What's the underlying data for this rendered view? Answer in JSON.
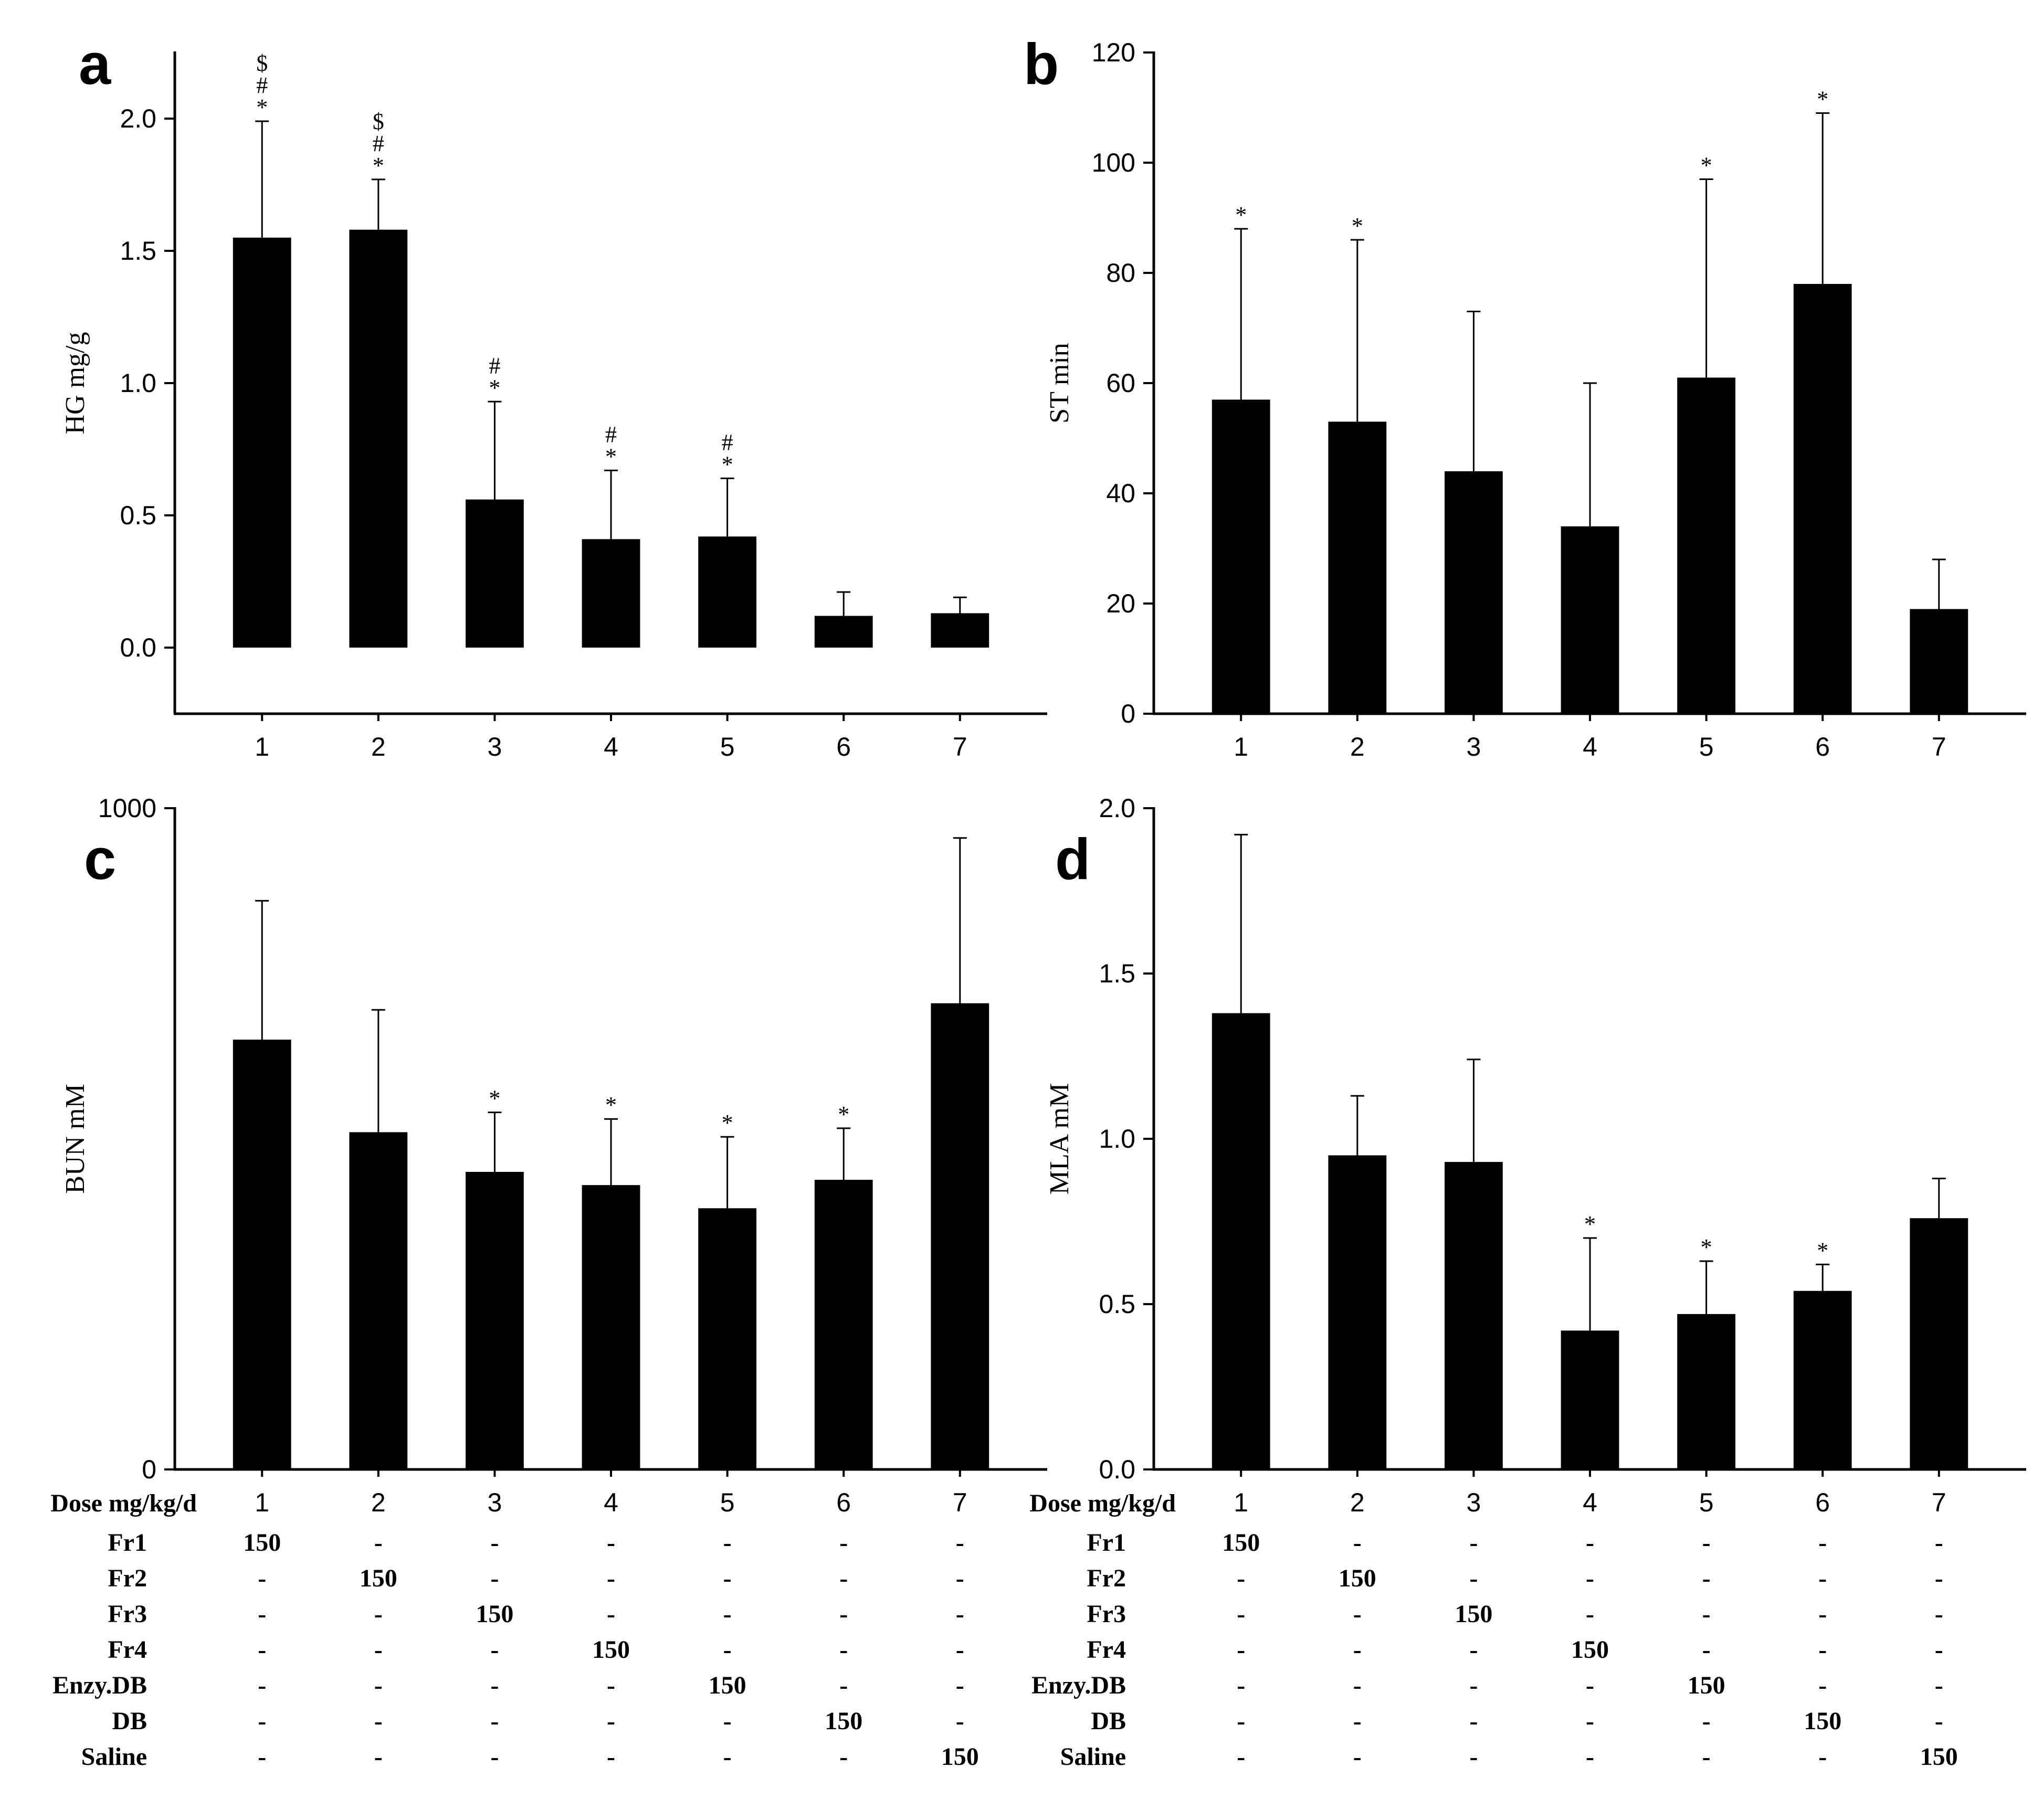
{
  "figure": {
    "categories": [
      "1",
      "2",
      "3",
      "4",
      "5",
      "6",
      "7"
    ]
  },
  "chart_data": [
    {
      "panel": "a",
      "type": "bar",
      "categories": [
        "1",
        "2",
        "3",
        "4",
        "5",
        "6",
        "7"
      ],
      "values": [
        1.55,
        1.58,
        0.56,
        0.41,
        0.42,
        0.12,
        0.13
      ],
      "errors": [
        0.44,
        0.19,
        0.37,
        0.26,
        0.22,
        0.09,
        0.06
      ],
      "significance": [
        [
          "*",
          "#",
          "$"
        ],
        [
          "*",
          "#",
          "$"
        ],
        [
          "*",
          "#"
        ],
        [
          "*",
          "#"
        ],
        [
          "*",
          "#"
        ],
        [],
        []
      ],
      "ylabel": "HG mg/g",
      "ylim": [
        -0.25,
        2.25
      ],
      "yticks": [
        0.0,
        0.5,
        1.0,
        1.5,
        2.0
      ],
      "ytick_labels": [
        "0.0",
        "0.5",
        "1.0",
        "1.5",
        "2.0"
      ]
    },
    {
      "panel": "b",
      "type": "bar",
      "categories": [
        "1",
        "2",
        "3",
        "4",
        "5",
        "6",
        "7"
      ],
      "values": [
        57,
        53,
        44,
        34,
        61,
        78,
        19
      ],
      "errors": [
        31,
        33,
        29,
        26,
        36,
        31,
        9
      ],
      "significance": [
        [
          "*"
        ],
        [
          "*"
        ],
        [],
        [],
        [
          "*"
        ],
        [
          "*"
        ],
        []
      ],
      "ylabel": "ST min",
      "ylim": [
        0,
        120
      ],
      "yticks": [
        0,
        20,
        40,
        60,
        80,
        100,
        120
      ],
      "ytick_labels": [
        "0",
        "20",
        "40",
        "60",
        "80",
        "100",
        "120"
      ]
    },
    {
      "panel": "c",
      "type": "bar",
      "categories": [
        "1",
        "2",
        "3",
        "4",
        "5",
        "6",
        "7"
      ],
      "values": [
        650,
        510,
        450,
        430,
        395,
        438,
        705
      ],
      "errors": [
        210,
        185,
        90,
        100,
        108,
        78,
        250
      ],
      "significance": [
        [],
        [],
        [
          "*"
        ],
        [
          "*"
        ],
        [
          "*"
        ],
        [
          "*"
        ],
        []
      ],
      "ylabel": "BUN mM",
      "ylim": [
        0,
        1000
      ],
      "yticks": [
        0,
        1000
      ],
      "ytick_labels": [
        "0",
        "1000"
      ]
    },
    {
      "panel": "d",
      "type": "bar",
      "categories": [
        "1",
        "2",
        "3",
        "4",
        "5",
        "6",
        "7"
      ],
      "values": [
        1.38,
        0.95,
        0.93,
        0.42,
        0.47,
        0.54,
        0.76
      ],
      "errors": [
        0.54,
        0.18,
        0.31,
        0.28,
        0.16,
        0.08,
        0.12
      ],
      "significance": [
        [],
        [],
        [],
        [
          "*"
        ],
        [
          "*"
        ],
        [
          "*"
        ],
        []
      ],
      "ylabel": "MLA mM",
      "ylim": [
        0,
        2.0
      ],
      "yticks": [
        0.0,
        0.5,
        1.0,
        1.5,
        2.0
      ],
      "ytick_labels": [
        "0.0",
        "0.5",
        "1.0",
        "1.5",
        "2.0"
      ]
    }
  ],
  "dose_table": {
    "header": "Dose mg/kg/d",
    "rows": [
      {
        "label": "Fr1",
        "cells": [
          "150",
          "-",
          "-",
          "-",
          "-",
          "-",
          "-"
        ]
      },
      {
        "label": "Fr2",
        "cells": [
          "-",
          "150",
          "-",
          "-",
          "-",
          "-",
          "-"
        ]
      },
      {
        "label": "Fr3",
        "cells": [
          "-",
          "-",
          "150",
          "-",
          "-",
          "-",
          "-"
        ]
      },
      {
        "label": "Fr4",
        "cells": [
          "-",
          "-",
          "-",
          "150",
          "-",
          "-",
          "-"
        ]
      },
      {
        "label": "Enzy.DB",
        "cells": [
          "-",
          "-",
          "-",
          "-",
          "150",
          "-",
          "-"
        ]
      },
      {
        "label": "DB",
        "cells": [
          "-",
          "-",
          "-",
          "-",
          "-",
          "150",
          "-"
        ]
      },
      {
        "label": "Saline",
        "cells": [
          "-",
          "-",
          "-",
          "-",
          "-",
          "-",
          "150"
        ]
      }
    ]
  }
}
